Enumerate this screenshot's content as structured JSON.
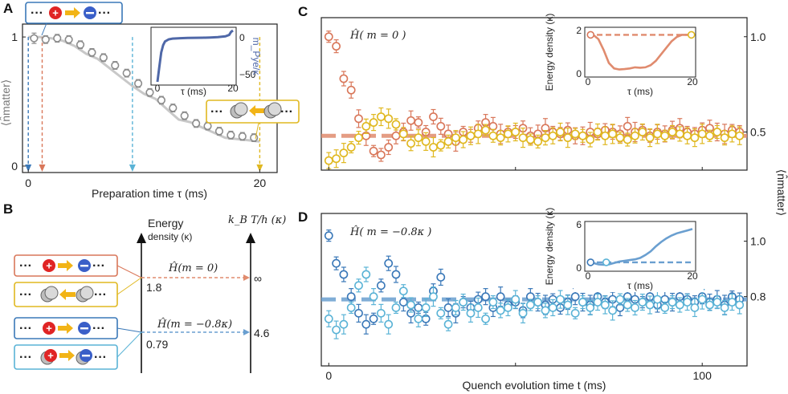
{
  "colors": {
    "gray_pts": "#8c8c8c",
    "gray_line": "#c8c8c8",
    "orange": "#d9775a",
    "yellow": "#e0b820",
    "dark_blue": "#3a78b8",
    "light_blue": "#5ab3d6",
    "inset_line": "#4f68a8",
    "energy_orange": "#e08b6e",
    "energy_blue": "#6a9fd0",
    "red_ball": "#e02424",
    "blue_ball": "#3a5fc8",
    "arrow_gold": "#f2b416"
  },
  "labels": {
    "panel_a": "A",
    "panel_b": "B",
    "panel_c": "C",
    "panel_d": "D",
    "dots": "···",
    "ylabel_matter": "⟨n̂matter⟩",
    "quench_xlabel": "Quench evolution time t (ms)"
  },
  "panel_b": {
    "energy_axis_label": "Energy",
    "energy_axis_label2": "density (κ)",
    "temp_axis_label": "k_B T/h (κ)",
    "ham_m0": "Ĥ(m = 0)",
    "ham_m08": "Ĥ(m = −0.8κ)",
    "energy_m0": "1.8",
    "energy_m08": "0.79",
    "temp_m0": "∞",
    "temp_m08": "4.6"
  },
  "chart_data": [
    {
      "id": "A",
      "type": "scatter",
      "title": "",
      "xlabel": "Preparation time τ (ms)",
      "ylabel": "⟨n̂matter⟩",
      "xlim": [
        -0.5,
        21.5
      ],
      "ylim": [
        -0.05,
        1.1
      ],
      "xticks": [
        "0",
        "20"
      ],
      "yticks": [
        "0",
        "1"
      ],
      "points_x": [
        0.5,
        1.5,
        2.5,
        3.5,
        4.5,
        5.5,
        6.5,
        7.5,
        8.5,
        9.5,
        10.5,
        11.5,
        12.5,
        13.5,
        14.5,
        15.5,
        16.5,
        17.5,
        18.5,
        19.5
      ],
      "points_y": [
        0.99,
        0.98,
        0.99,
        0.98,
        0.94,
        0.88,
        0.84,
        0.78,
        0.72,
        0.64,
        0.57,
        0.51,
        0.45,
        0.39,
        0.33,
        0.31,
        0.27,
        0.24,
        0.23,
        0.22
      ],
      "errors": [
        0.04,
        0.03,
        0.03,
        0.03,
        0.03,
        0.03,
        0.03,
        0.03,
        0.03,
        0.03,
        0.03,
        0.03,
        0.03,
        0.03,
        0.03,
        0.03,
        0.03,
        0.03,
        0.03,
        0.03
      ],
      "theory_x": [
        0,
        1,
        2,
        3,
        4,
        5,
        6,
        7,
        8,
        9,
        10,
        11,
        12,
        13,
        14,
        15,
        16,
        17,
        18,
        19,
        20
      ],
      "theory_y": [
        1.0,
        1.0,
        0.99,
        0.97,
        0.93,
        0.87,
        0.83,
        0.76,
        0.69,
        0.62,
        0.56,
        0.52,
        0.44,
        0.36,
        0.34,
        0.3,
        0.26,
        0.22,
        0.21,
        0.2,
        0.19
      ],
      "markers_x": [
        0,
        1.2,
        9,
        20
      ],
      "legend_in": "···⊕→⊖···",
      "legend_out": "···◯←◯···"
    },
    {
      "id": "A_inset",
      "type": "line",
      "xlabel": "τ (ms)",
      "ylabel": "m_Pye/κ",
      "xticks": [
        "0",
        "20"
      ],
      "yticks": [
        "0",
        "−50"
      ],
      "xlim": [
        0,
        20
      ],
      "ylim": [
        -60,
        10
      ],
      "x": [
        0,
        0.5,
        1,
        1.5,
        2,
        3,
        4,
        6,
        8,
        10,
        12,
        14,
        16,
        18,
        19,
        19.5,
        20
      ],
      "y": [
        -60,
        -40,
        -20,
        -10,
        -5,
        -2,
        -1,
        -0.5,
        -0.2,
        0,
        0.2,
        0.5,
        1,
        2,
        4,
        8,
        10
      ]
    },
    {
      "id": "C",
      "type": "scatter",
      "xlabel": "",
      "ylabel": "⟨n̂matter⟩",
      "title": "Ĥ( m = 0 )",
      "ylim": [
        0.3,
        1.1
      ],
      "yticks": [
        "0.5",
        "1.0"
      ],
      "xlim": [
        -2,
        112
      ],
      "series": [
        {
          "name": "orange (fast)",
          "x": [
            0,
            2,
            4,
            6,
            8,
            10,
            12,
            14,
            16,
            18,
            20,
            22,
            24,
            26,
            28,
            30,
            32,
            34,
            36,
            38,
            40,
            42,
            44,
            46,
            48,
            50,
            52,
            54,
            56,
            58,
            60,
            62,
            64,
            66,
            68,
            70,
            72,
            74,
            76,
            78,
            80,
            82,
            84,
            86,
            88,
            90,
            92,
            94,
            96,
            98,
            100,
            102,
            104,
            106,
            108,
            110
          ],
          "values": [
            1.0,
            0.95,
            0.78,
            0.72,
            0.57,
            0.48,
            0.4,
            0.38,
            0.42,
            0.48,
            0.5,
            0.56,
            0.55,
            0.5,
            0.58,
            0.53,
            0.49,
            0.45,
            0.5,
            0.48,
            0.52,
            0.55,
            0.53,
            0.49,
            0.5,
            0.5,
            0.52,
            0.48,
            0.49,
            0.52,
            0.5,
            0.49,
            0.51,
            0.48,
            0.48,
            0.5,
            0.49,
            0.51,
            0.5,
            0.49,
            0.53,
            0.5,
            0.51,
            0.48,
            0.5,
            0.49,
            0.51,
            0.52,
            0.5,
            0.49,
            0.51,
            0.52,
            0.5,
            0.49,
            0.51,
            0.5
          ]
        },
        {
          "name": "yellow",
          "x": [
            0,
            2,
            4,
            6,
            8,
            10,
            12,
            14,
            16,
            18,
            20,
            22,
            24,
            26,
            28,
            30,
            32,
            34,
            36,
            38,
            40,
            42,
            44,
            46,
            48,
            50,
            52,
            54,
            56,
            58,
            60,
            62,
            64,
            66,
            68,
            70,
            72,
            74,
            76,
            78,
            80,
            82,
            84,
            86,
            88,
            90,
            92,
            94,
            96,
            98,
            100,
            102,
            104,
            106,
            108,
            110
          ],
          "values": [
            0.35,
            0.36,
            0.39,
            0.42,
            0.47,
            0.53,
            0.55,
            0.58,
            0.57,
            0.54,
            0.49,
            0.44,
            0.47,
            0.45,
            0.42,
            0.43,
            0.45,
            0.47,
            0.46,
            0.48,
            0.49,
            0.51,
            0.48,
            0.47,
            0.49,
            0.5,
            0.47,
            0.46,
            0.45,
            0.47,
            0.48,
            0.5,
            0.47,
            0.49,
            0.48,
            0.46,
            0.5,
            0.48,
            0.49,
            0.47,
            0.46,
            0.48,
            0.5,
            0.47,
            0.49,
            0.48,
            0.5,
            0.49,
            0.48,
            0.47,
            0.49,
            0.48,
            0.5,
            0.47,
            0.49,
            0.48
          ]
        }
      ],
      "equilibrium": 0.48,
      "inset": {
        "xlabel": "τ (ms)",
        "ylabel": "Energy density (κ)",
        "xticks": [
          "0",
          "20"
        ],
        "yticks": [
          "0",
          "2"
        ],
        "x": [
          0,
          1,
          2,
          3,
          4,
          5,
          6,
          7,
          8,
          9,
          10,
          11,
          12,
          13,
          14,
          15,
          16,
          17,
          18,
          19,
          20
        ],
        "y": [
          1.8,
          1.8,
          1.6,
          1.1,
          0.5,
          0.25,
          0.2,
          0.22,
          0.25,
          0.3,
          0.28,
          0.3,
          0.4,
          0.6,
          0.9,
          1.2,
          1.5,
          1.7,
          1.8,
          1.8,
          1.8
        ],
        "level": 1.8
      }
    },
    {
      "id": "D",
      "type": "scatter",
      "xlabel": "Quench evolution time t (ms)",
      "ylabel": "⟨n̂matter⟩",
      "title": "Ĥ( m = −0.8κ )",
      "ylim": [
        0.55,
        1.1
      ],
      "yticks": [
        "0.8",
        "1.0"
      ],
      "xlim": [
        -2,
        112
      ],
      "xticks": [
        "0",
        "100"
      ],
      "series": [
        {
          "name": "dark blue",
          "x": [
            0,
            2,
            4,
            6,
            8,
            10,
            12,
            14,
            16,
            18,
            20,
            22,
            24,
            26,
            28,
            30,
            32,
            34,
            36,
            38,
            40,
            42,
            44,
            46,
            48,
            50,
            52,
            54,
            56,
            58,
            60,
            62,
            64,
            66,
            68,
            70,
            72,
            74,
            76,
            78,
            80,
            82,
            84,
            86,
            88,
            90,
            92,
            94,
            96,
            98,
            100,
            102,
            104,
            106,
            108,
            110
          ],
          "values": [
            1.02,
            0.92,
            0.88,
            0.8,
            0.74,
            0.7,
            0.72,
            0.84,
            0.92,
            0.88,
            0.78,
            0.74,
            0.76,
            0.72,
            0.82,
            0.87,
            0.76,
            0.74,
            0.78,
            0.76,
            0.79,
            0.8,
            0.76,
            0.8,
            0.77,
            0.78,
            0.75,
            0.8,
            0.78,
            0.77,
            0.79,
            0.76,
            0.78,
            0.8,
            0.78,
            0.77,
            0.8,
            0.78,
            0.79,
            0.76,
            0.8,
            0.79,
            0.78,
            0.8,
            0.77,
            0.79,
            0.78,
            0.8,
            0.79,
            0.78,
            0.8,
            0.78,
            0.79,
            0.77,
            0.8,
            0.79
          ]
        },
        {
          "name": "light blue",
          "x": [
            0,
            2,
            4,
            6,
            8,
            10,
            12,
            14,
            16,
            18,
            20,
            22,
            24,
            26,
            28,
            30,
            32,
            34,
            36,
            38,
            40,
            42,
            44,
            46,
            48,
            50,
            52,
            54,
            56,
            58,
            60,
            62,
            64,
            66,
            68,
            70,
            72,
            74,
            76,
            78,
            80,
            82,
            84,
            86,
            88,
            90,
            92,
            94,
            96,
            98,
            100,
            102,
            104,
            106,
            108,
            110
          ],
          "values": [
            0.72,
            0.68,
            0.7,
            0.76,
            0.84,
            0.88,
            0.8,
            0.74,
            0.7,
            0.76,
            0.82,
            0.77,
            0.72,
            0.76,
            0.8,
            0.74,
            0.7,
            0.76,
            0.78,
            0.74,
            0.76,
            0.72,
            0.78,
            0.75,
            0.76,
            0.79,
            0.74,
            0.77,
            0.78,
            0.75,
            0.76,
            0.79,
            0.77,
            0.74,
            0.78,
            0.76,
            0.78,
            0.77,
            0.75,
            0.79,
            0.77,
            0.76,
            0.78,
            0.77,
            0.79,
            0.76,
            0.78,
            0.77,
            0.78,
            0.76,
            0.79,
            0.77,
            0.78,
            0.76,
            0.78,
            0.77
          ]
        }
      ],
      "equilibrium": 0.79,
      "inset": {
        "xlabel": "τ (ms)",
        "ylabel": "Energy density (κ)",
        "xticks": [
          "0",
          "20"
        ],
        "yticks": [
          "0",
          "6"
        ],
        "x": [
          0,
          1,
          2,
          3,
          4,
          5,
          6,
          7,
          8,
          9,
          10,
          11,
          12,
          13,
          14,
          15,
          16,
          17,
          18,
          19,
          20
        ],
        "y": [
          0.79,
          0.7,
          0.5,
          0.45,
          0.5,
          0.7,
          0.9,
          1.0,
          1.1,
          1.2,
          1.4,
          1.8,
          2.3,
          3.0,
          3.6,
          4.1,
          4.5,
          4.8,
          5.0,
          5.2,
          5.4
        ],
        "level": 0.79
      }
    }
  ]
}
